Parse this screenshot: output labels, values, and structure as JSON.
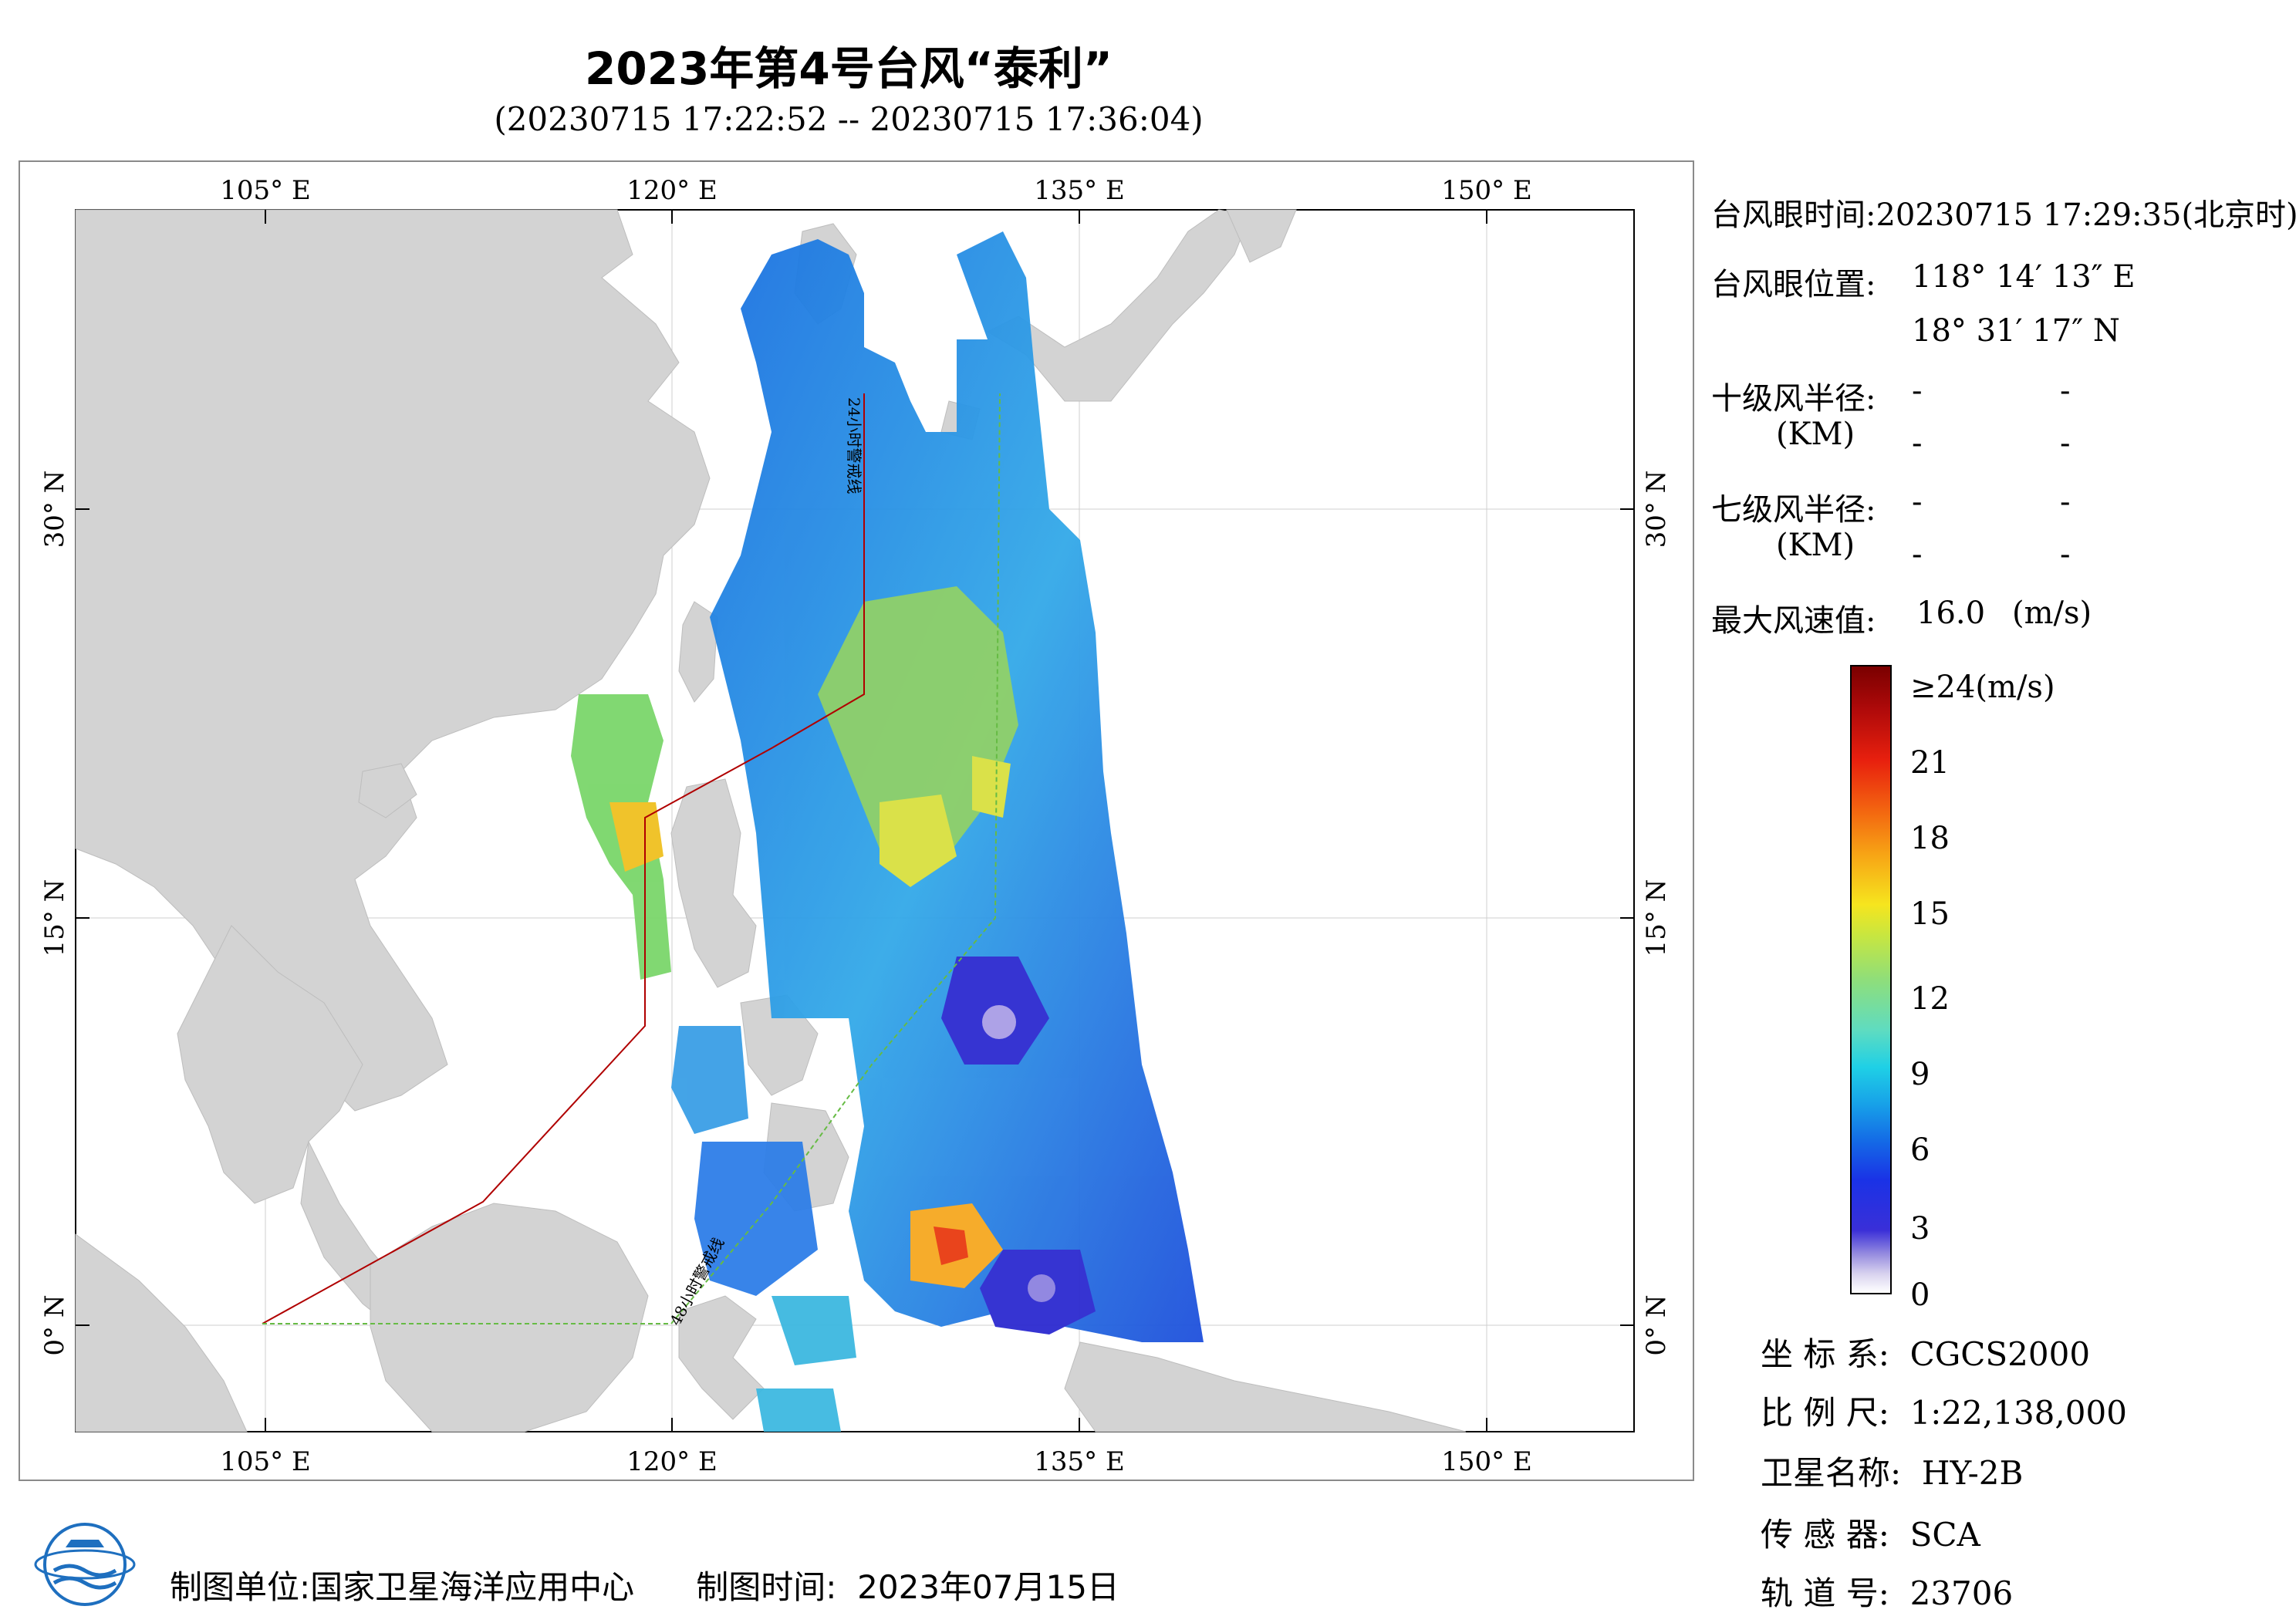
{
  "header": {
    "title": "2023年第4号台风“泰利”",
    "subtitle": "(20230715 17:22:52 -- 20230715 17:36:04)"
  },
  "map": {
    "lon_ticks_top": [
      "105° E",
      "120° E",
      "135° E",
      "150° E"
    ],
    "lon_ticks_bottom": [
      "105° E",
      "120° E",
      "135° E",
      "150° E"
    ],
    "lat_ticks_left": [
      "30° N",
      "15° N",
      "0° N"
    ],
    "lat_ticks_right": [
      "30° N",
      "15° N",
      "0° N"
    ],
    "warning_lines": {
      "line_24h": "24小时警戒线",
      "line_48h": "48小时警戒线",
      "color_24h": "#b00000",
      "color_48h": "#66bb44"
    },
    "land_color": "#d3d3d3",
    "sea_color": "#ffffff"
  },
  "typhoon_panel": {
    "eye_time_label": "台风眼时间:",
    "eye_time_value": "20230715 17:29:35(北京时)",
    "eye_pos_label": "台风眼位置:",
    "eye_lon": "118° 14′ 13″ E",
    "eye_lat": "18° 31′ 17″ N",
    "r10_label": "十级风半径:",
    "r7_label": "七级风半径:",
    "km_label": "(KM)",
    "dash": "-",
    "max_wind_label": "最大风速值:",
    "max_wind_value": "16.0",
    "max_wind_unit": "(m/s)"
  },
  "colorbar": {
    "top_label": "≥24(m/s)",
    "labels": [
      "21",
      "18",
      "15",
      "12",
      "9",
      "6",
      "3",
      "0"
    ]
  },
  "info": {
    "crs_label": "坐 标 系:",
    "crs_value": "CGCS2000",
    "scale_label": "比 例 尺:",
    "scale_value": "1:22,138,000",
    "satellite_label": "卫星名称:",
    "satellite_value": "HY-2B",
    "sensor_label": "传 感 器:",
    "sensor_value": "SCA",
    "orbit_label": "轨 道 号:",
    "orbit_value": "23706"
  },
  "footer": {
    "maker_label": "制图单位:",
    "maker_value": "国家卫星海洋应用中心",
    "date_label": "制图时间:",
    "date_value": "2023年07月15日"
  },
  "logo": {
    "icon": "nsoas-logo-icon"
  }
}
